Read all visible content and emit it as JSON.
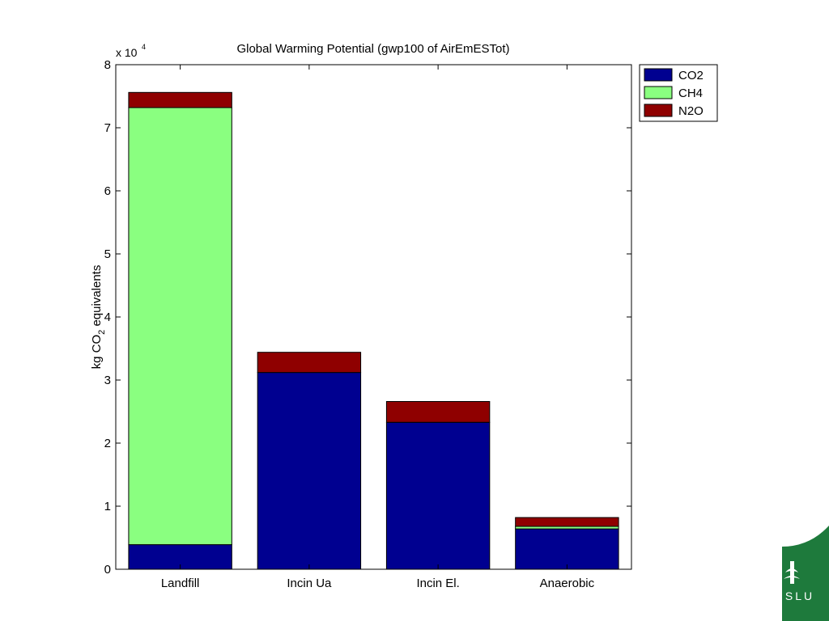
{
  "chart_data": {
    "type": "bar",
    "stacked": true,
    "title": "Global Warming Potential (gwp100 of AirEmESTot)",
    "ylabel_prefix": "kg CO",
    "ylabel_subscript": "2",
    "ylabel_suffix": " equivalents",
    "y_multiplier_base": "x 10",
    "y_multiplier_exp": "4",
    "categories": [
      "Landfill",
      "Incin Ua",
      "Incin El.",
      "Anaerobic"
    ],
    "ylim": [
      0,
      8
    ],
    "yticks": [
      0,
      1,
      2,
      3,
      4,
      5,
      6,
      7,
      8
    ],
    "series": [
      {
        "name": "CO2",
        "color": "#000090",
        "values": [
          0.39,
          3.12,
          2.33,
          0.64
        ]
      },
      {
        "name": "CH4",
        "color": "#8aff80",
        "values": [
          6.93,
          0.0,
          0.0,
          0.04
        ]
      },
      {
        "name": "N2O",
        "color": "#8f0000",
        "values": [
          0.24,
          0.32,
          0.33,
          0.14
        ]
      }
    ],
    "legend_position": "outside-top-right",
    "grid": false
  },
  "logo": {
    "text": "SLU",
    "color": "#1e7a3c",
    "icon": "slu-leaf-logo"
  }
}
